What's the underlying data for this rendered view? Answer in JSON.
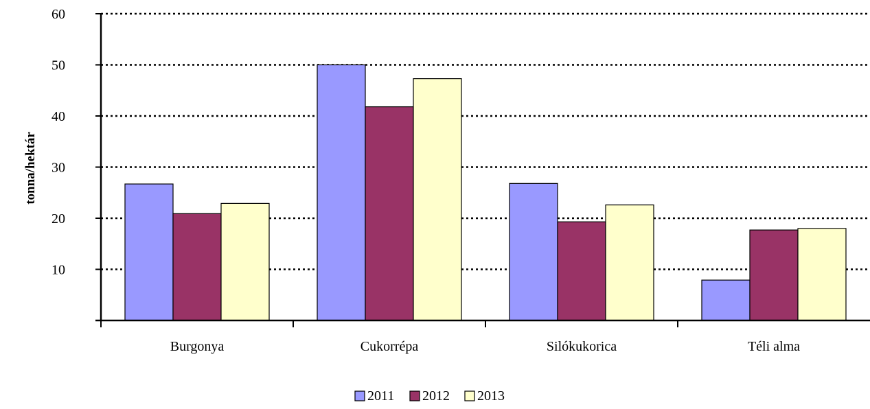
{
  "chart_data": {
    "type": "bar",
    "title": "",
    "xlabel": "",
    "ylabel": "tonna/hektár",
    "ylim": [
      0,
      60
    ],
    "yticks": [
      10,
      20,
      30,
      40,
      50,
      60
    ],
    "grid": true,
    "legend_position": "bottom",
    "categories": [
      "Burgonya",
      "Cukorrépa",
      "Silókukorica",
      "Téli alma"
    ],
    "series": [
      {
        "name": "2011",
        "color": "#9999FF",
        "values": [
          26.7,
          50.0,
          26.8,
          7.9
        ]
      },
      {
        "name": "2012",
        "color": "#993366",
        "values": [
          20.9,
          41.8,
          19.3,
          17.7
        ]
      },
      {
        "name": "2013",
        "color": "#FFFFCC",
        "values": [
          22.9,
          47.3,
          22.6,
          18.0
        ]
      }
    ]
  }
}
